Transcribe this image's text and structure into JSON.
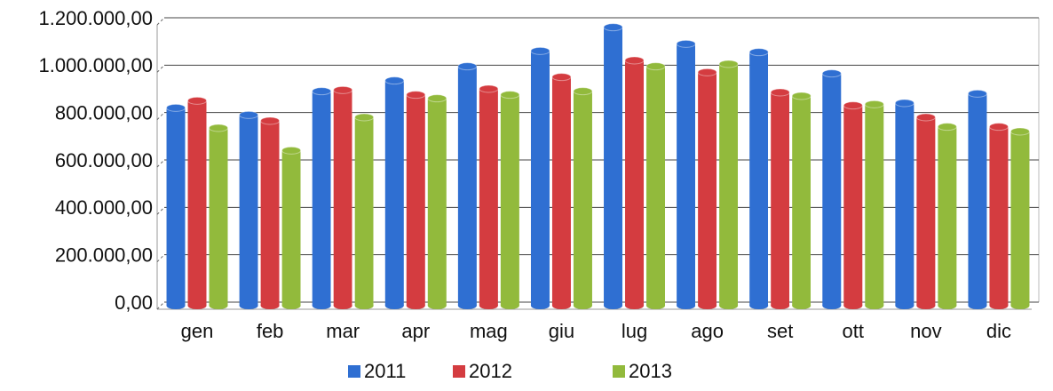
{
  "chart_data": {
    "type": "bar",
    "categories": [
      "gen",
      "feb",
      "mar",
      "apr",
      "mag",
      "giu",
      "lug",
      "ago",
      "set",
      "ott",
      "nov",
      "dic"
    ],
    "series": [
      {
        "name": "2011",
        "color": "#2f6fd2",
        "values": [
          820000,
          790000,
          890000,
          935000,
          995000,
          1060000,
          1160000,
          1090000,
          1055000,
          965000,
          840000,
          880000
        ]
      },
      {
        "name": "2012",
        "color": "#d43c40",
        "values": [
          850000,
          765000,
          895000,
          875000,
          900000,
          950000,
          1020000,
          970000,
          885000,
          830000,
          780000,
          740000
        ]
      },
      {
        "name": "2013",
        "color": "#92ba3c",
        "values": [
          735000,
          640000,
          780000,
          860000,
          875000,
          890000,
          995000,
          1005000,
          870000,
          835000,
          740000,
          720000
        ]
      }
    ],
    "ylim": [
      0,
      1200000
    ],
    "yticks": [
      {
        "value": 0,
        "label": "0,00"
      },
      {
        "value": 200000,
        "label": "200.000,00"
      },
      {
        "value": 400000,
        "label": "400.000,00"
      },
      {
        "value": 600000,
        "label": "600.000,00"
      },
      {
        "value": 800000,
        "label": "800.000,00"
      },
      {
        "value": 1000000,
        "label": "1.000.000,00"
      },
      {
        "value": 1200000,
        "label": "1.200.000,00"
      }
    ],
    "grid": true,
    "legend": "bottom"
  }
}
